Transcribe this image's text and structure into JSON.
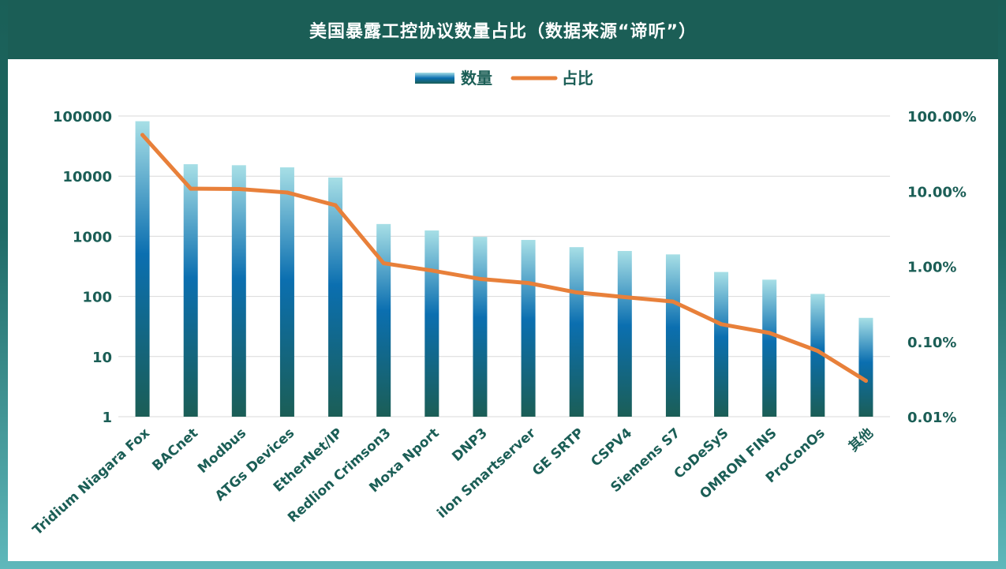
{
  "chart_data": {
    "type": "bar",
    "title": "美国暴露工控协议数量占比（数据来源“谛听”）",
    "categories": [
      "Tridium Niagara Fox",
      "BACnet",
      "Modbus",
      "ATGs Devices",
      "EtherNet/IP",
      "Redlion Crimson3",
      "Moxa Nport",
      "DNP3",
      "ilon Smartserver",
      "GE SRTP",
      "CSPV4",
      "Siemens S7",
      "CoDeSyS",
      "OMRON FINS",
      "ProConOs",
      "其他"
    ],
    "series": [
      {
        "name": "数量",
        "type": "bar",
        "axis": "left",
        "values": [
          82000,
          15800,
          15200,
          14000,
          9500,
          1600,
          1250,
          980,
          870,
          660,
          570,
          500,
          255,
          190,
          110,
          44
        ]
      },
      {
        "name": "占比",
        "type": "line",
        "axis": "right",
        "values": [
          56.0,
          10.8,
          10.7,
          9.6,
          6.5,
          1.1,
          0.88,
          0.68,
          0.6,
          0.45,
          0.39,
          0.34,
          0.17,
          0.13,
          0.075,
          0.03
        ]
      }
    ],
    "y_left": {
      "scale": "log",
      "range": [
        1,
        100000
      ],
      "ticks": [
        "1",
        "10",
        "100",
        "1000",
        "10000",
        "100000"
      ]
    },
    "y_right": {
      "scale": "log",
      "range": [
        0.01,
        100
      ],
      "ticks": [
        "0.01%",
        "0.10%",
        "1.00%",
        "10.00%",
        "100.00%"
      ]
    },
    "legend": {
      "placement": "top-center",
      "items": [
        "数量",
        "占比"
      ]
    },
    "grid": true,
    "colors": {
      "bar_top": "#a7dfe6",
      "bar_mid": "#0b6fb0",
      "bar_bottom": "#1b5e56",
      "line": "#e8803a",
      "text": "#1b5e56",
      "grid": "#d9d9d9",
      "header": "#1b5e56"
    }
  }
}
